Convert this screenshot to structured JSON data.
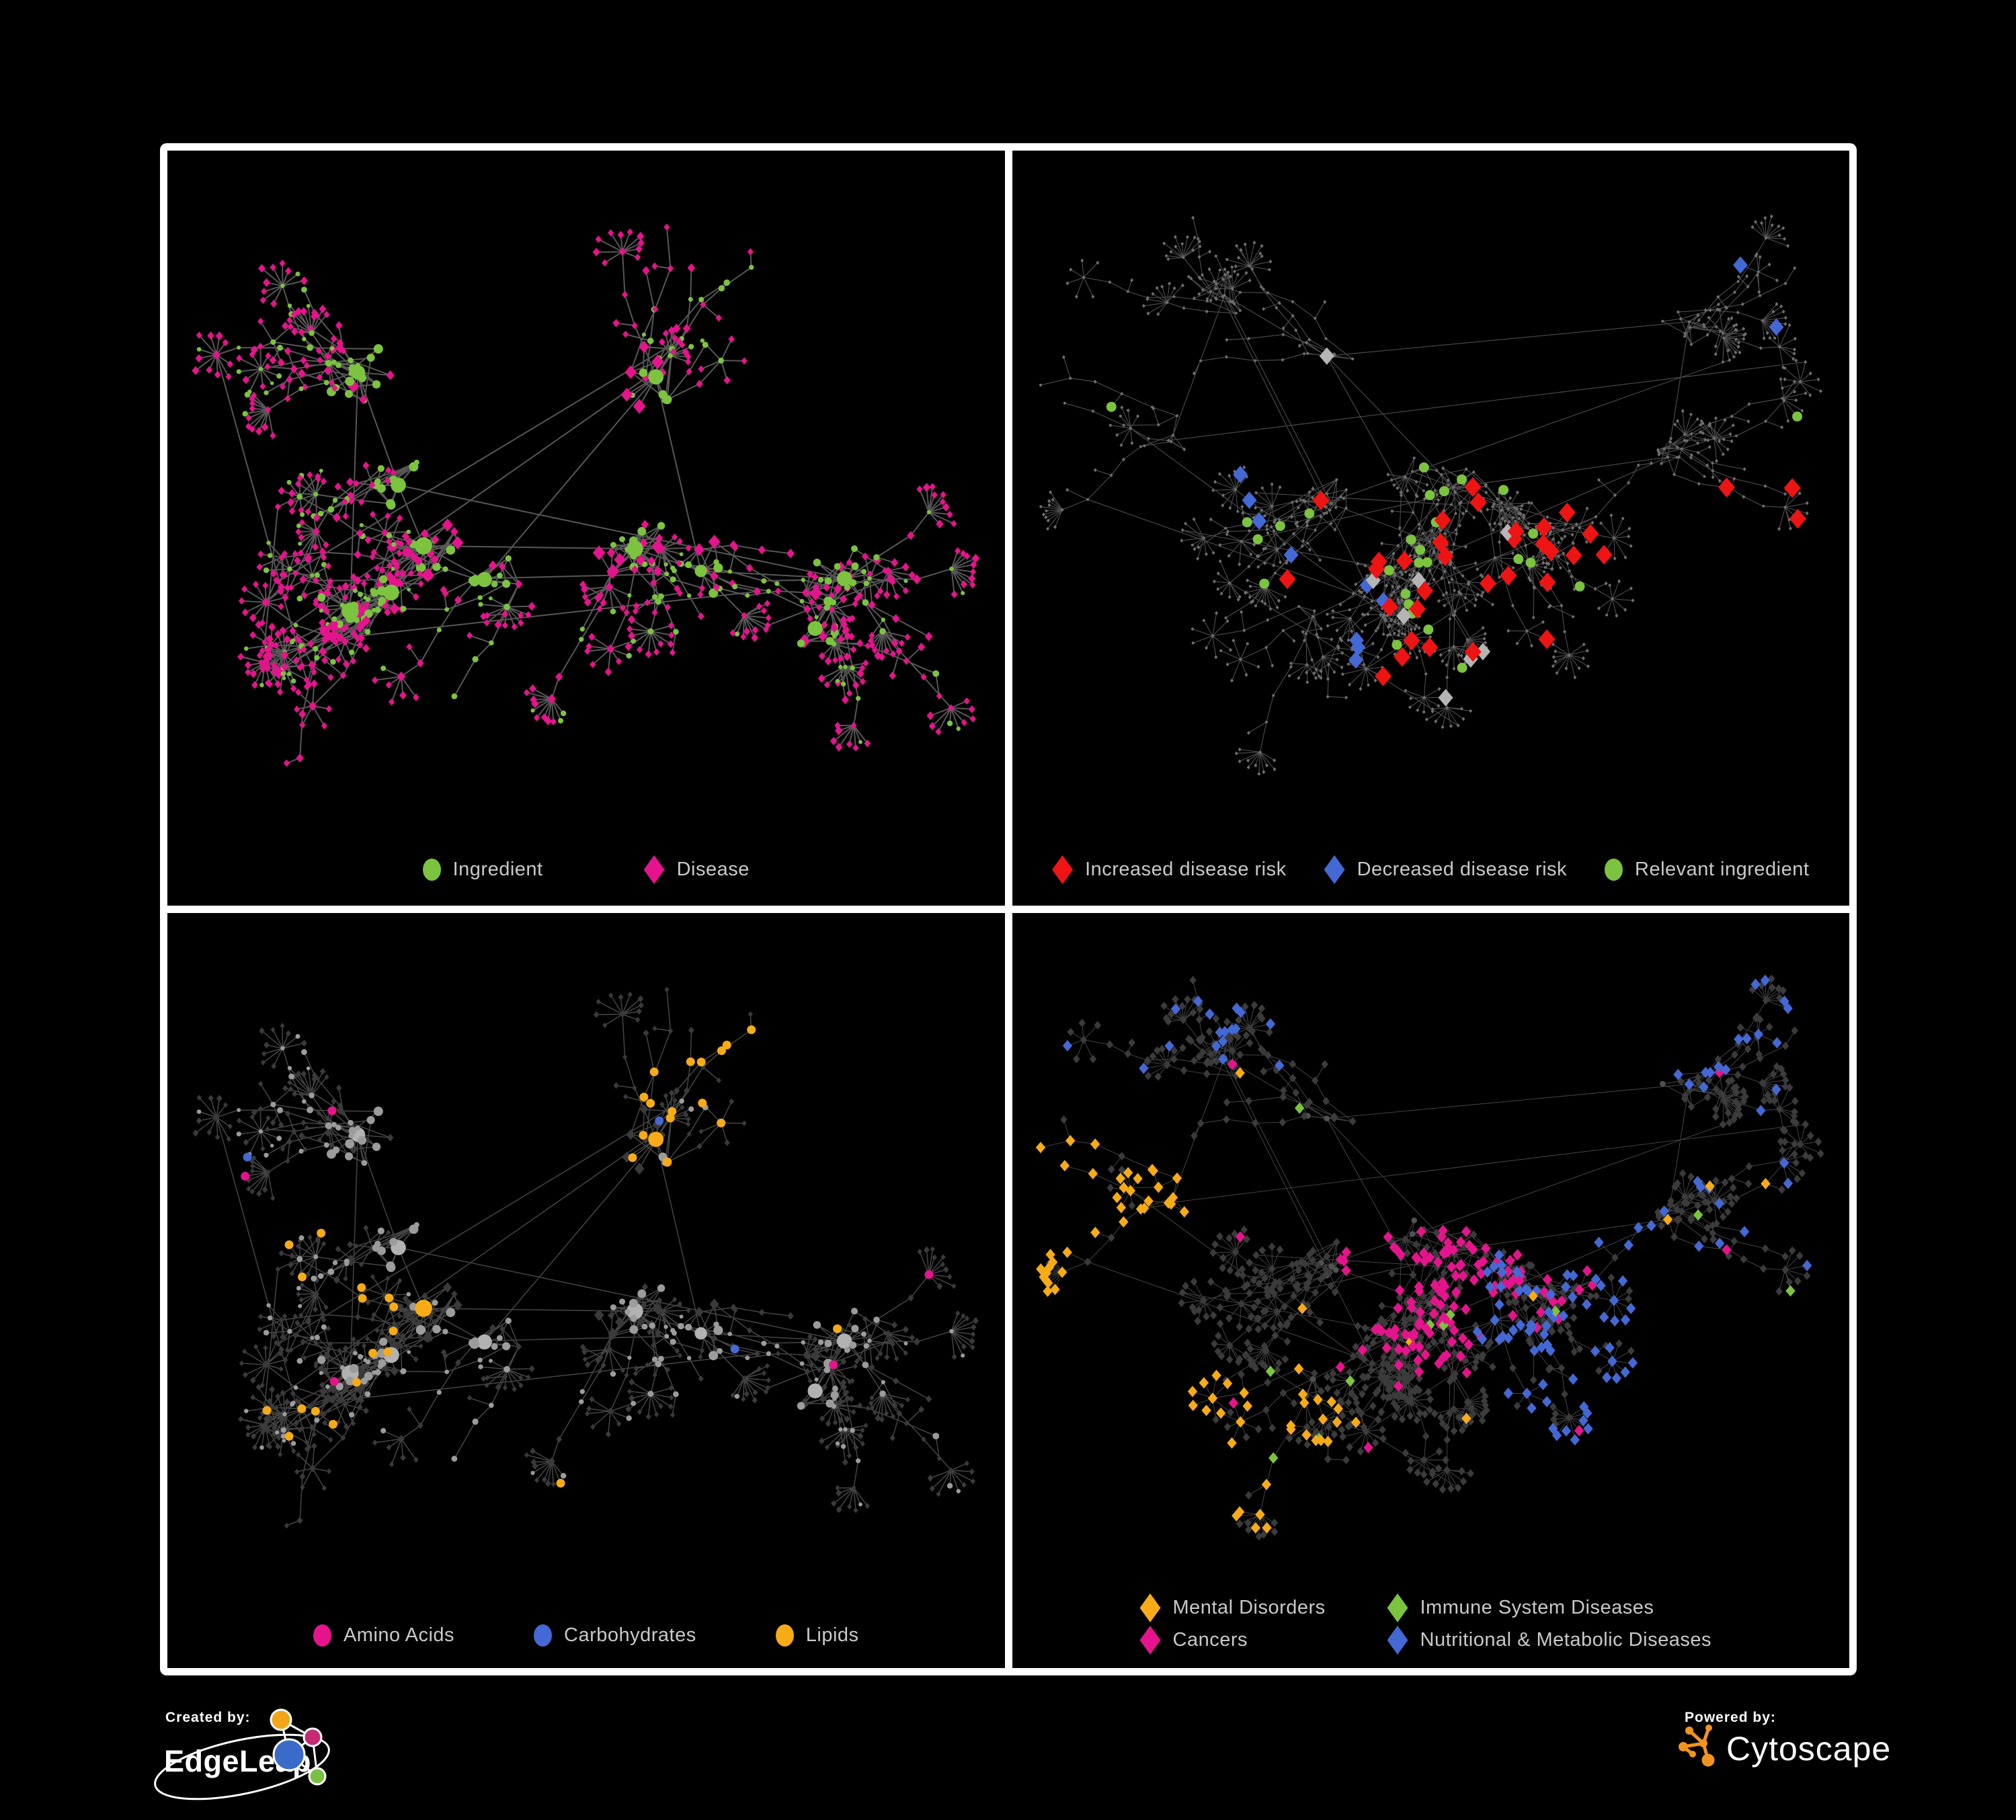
{
  "figure": {
    "background": "#000000",
    "frame_color": "#ffffff",
    "legend_text_color": "#c9c9c9"
  },
  "colors": {
    "green": "#7cc33f",
    "pink": "#e5148c",
    "red": "#ee1414",
    "blue": "#4468d4",
    "amber": "#f6ab17",
    "silver": "#b5b5b5"
  },
  "branding": {
    "created_by_label": "Created by:",
    "edgeleap_name": "EdgeLeap",
    "powered_by_label": "Powered by:",
    "cytoscape_name": "Cytoscape",
    "edgeleap_colors": {
      "orange": "#f2a71b",
      "magenta": "#c52a74",
      "blue": "#3a6bc8",
      "green": "#7ac143"
    },
    "cytoscape_orange": "#f0941f"
  },
  "panels": [
    {
      "id": "ingredient-disease",
      "position": "top-left",
      "seed": 11,
      "network": {
        "type": "node-link",
        "description": "Ingredient-disease association network",
        "edge_color": "#6f6f6f",
        "node_types": [
          {
            "label": "Ingredient",
            "shape": "circle",
            "color": "#7cc33f"
          },
          {
            "label": "Disease",
            "shape": "diamond",
            "color": "#e5148c"
          }
        ]
      },
      "legend": [
        {
          "label": "Ingredient",
          "shape": "circle",
          "color": "#7cc33f"
        },
        {
          "label": "Disease",
          "shape": "diamond",
          "color": "#e5148c"
        }
      ]
    },
    {
      "id": "disease-risk",
      "position": "top-right",
      "seed": 29,
      "network": {
        "type": "node-link",
        "description": "Network with disease-risk overlay; unselected nodes dimmed gray, some unlabeled gray diamonds",
        "edge_color": "#5e5e5e",
        "dim_node_color": "#6f6f6f",
        "unlabeled_diamond_color": "#b5b5b5",
        "node_types": [
          {
            "label": "Increased disease risk",
            "shape": "diamond",
            "color": "#ee1414"
          },
          {
            "label": "Decreased disease risk",
            "shape": "diamond",
            "color": "#4468d4"
          },
          {
            "label": "Relevant ingredient",
            "shape": "circle",
            "color": "#7cc33f"
          }
        ]
      },
      "legend": [
        {
          "label": "Increased disease risk",
          "shape": "diamond",
          "color": "#ee1414"
        },
        {
          "label": "Decreased disease risk",
          "shape": "diamond",
          "color": "#4468d4"
        },
        {
          "label": "Relevant ingredient",
          "shape": "circle",
          "color": "#7cc33f"
        }
      ]
    },
    {
      "id": "nutrients",
      "position": "bottom-left",
      "seed": 11,
      "network": {
        "type": "node-link",
        "description": "Same ingredient-disease network; ingredient circles colored by nutrient class, disease diamonds dimmed dark gray",
        "edge_color": "#8a8a8a",
        "dim_diamond_color": "#3a3a3a",
        "base_circle_color": "#9c9c9c",
        "node_types": [
          {
            "label": "Amino Acids",
            "shape": "circle",
            "color": "#e5148c"
          },
          {
            "label": "Carbohydrates",
            "shape": "circle",
            "color": "#4468d4"
          },
          {
            "label": "Lipids",
            "shape": "circle",
            "color": "#f6ab17"
          }
        ]
      },
      "legend": [
        {
          "label": "Amino Acids",
          "shape": "circle",
          "color": "#e5148c"
        },
        {
          "label": "Carbohydrates",
          "shape": "circle",
          "color": "#4468d4"
        },
        {
          "label": "Lipids",
          "shape": "circle",
          "color": "#f6ab17"
        }
      ]
    },
    {
      "id": "disease-classes",
      "position": "bottom-right",
      "seed": 29,
      "network": {
        "type": "node-link",
        "description": "Same network; disease diamonds colored by disease class, others dark gray",
        "edge_color": "#9a9a9a",
        "dim_diamond_color": "#3b3b3b",
        "node_types": [
          {
            "label": "Mental Disorders",
            "shape": "diamond",
            "color": "#f6ab17"
          },
          {
            "label": "Immune System Diseases",
            "shape": "diamond",
            "color": "#7cc33f"
          },
          {
            "label": "Cancers",
            "shape": "diamond",
            "color": "#e5148c"
          },
          {
            "label": "Nutritional & Metabolic Diseases",
            "shape": "diamond",
            "color": "#4468d4"
          }
        ]
      },
      "legend": [
        {
          "label": "Mental Disorders",
          "shape": "diamond",
          "color": "#f6ab17"
        },
        {
          "label": "Immune System Diseases",
          "shape": "diamond",
          "color": "#7cc33f"
        },
        {
          "label": "Cancers",
          "shape": "diamond",
          "color": "#e5148c"
        },
        {
          "label": "Nutritional & Metabolic Diseases",
          "shape": "diamond",
          "color": "#4468d4"
        }
      ]
    }
  ]
}
